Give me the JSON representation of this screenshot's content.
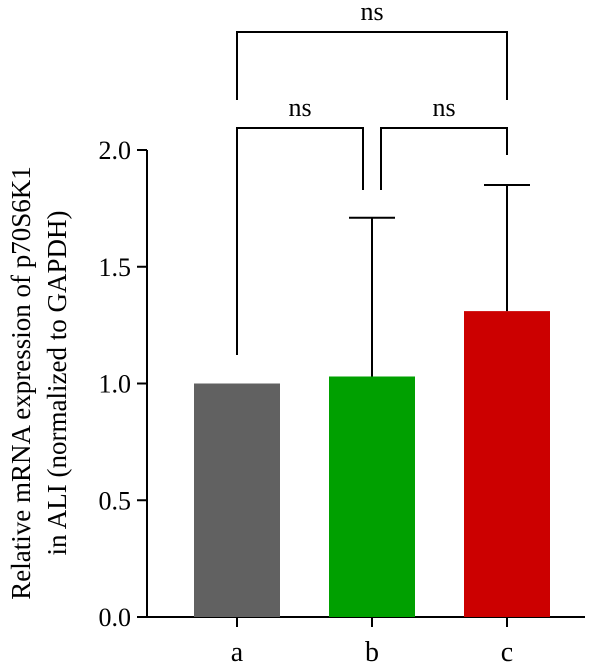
{
  "chart_data": {
    "type": "bar",
    "title": "",
    "xlabel": "",
    "ylabel_lines": [
      "Relative mRNA expression of p70S6K1",
      "in ALI (normalized to GAPDH)"
    ],
    "categories": [
      "a",
      "b",
      "c"
    ],
    "values": [
      1.0,
      1.03,
      1.31
    ],
    "error_upper": [
      0.0,
      0.68,
      0.54
    ],
    "colors": [
      "#616161",
      "#00a000",
      "#cc0000"
    ],
    "ylim": [
      0.0,
      2.0
    ],
    "yticks": [
      0.0,
      0.5,
      1.0,
      1.5,
      2.0
    ],
    "ytick_labels": [
      "0.0",
      "0.5",
      "1.0",
      "1.5",
      "2.0"
    ],
    "grid": false,
    "legend": "none",
    "significance": [
      {
        "from": 0,
        "to": 1,
        "label": "ns",
        "level": 1
      },
      {
        "from": 1,
        "to": 2,
        "label": "ns",
        "level": 1
      },
      {
        "from": 0,
        "to": 2,
        "label": "ns",
        "level": 2
      }
    ]
  }
}
